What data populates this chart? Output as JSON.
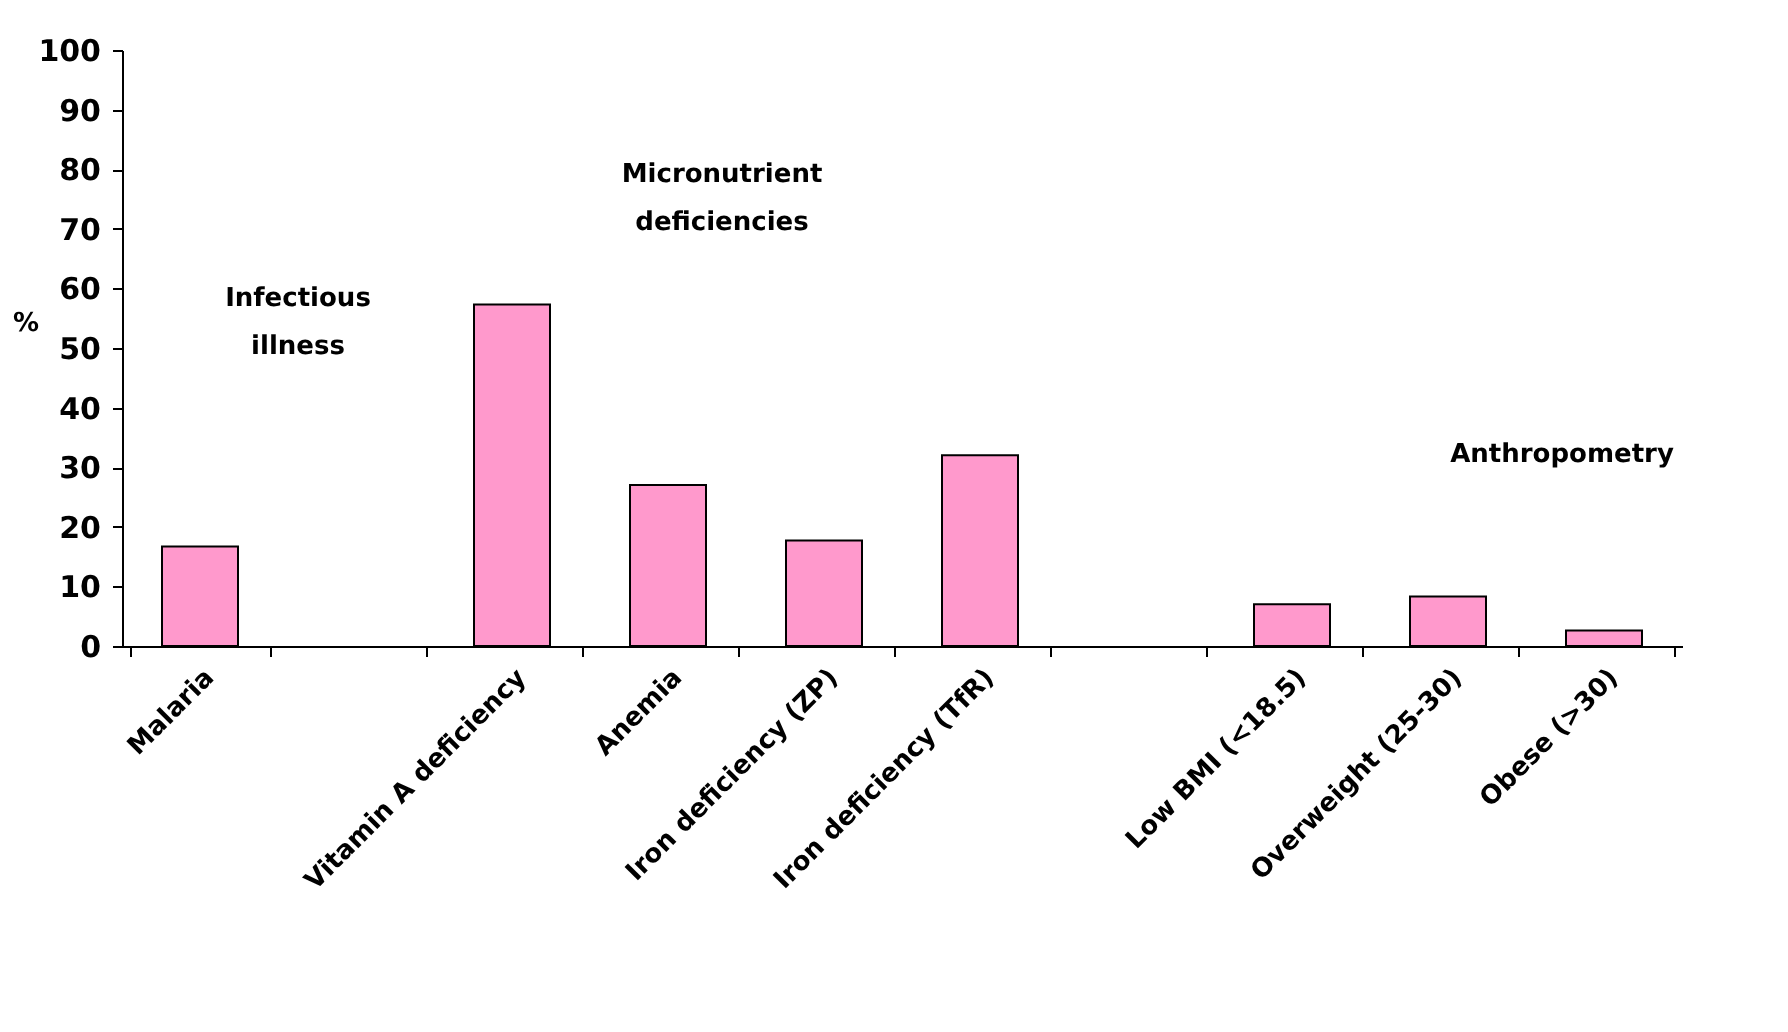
{
  "chart_data": {
    "type": "bar",
    "categories": [
      "Malaria",
      null,
      "Vitamin A deficiency",
      "Anemia",
      "Iron deficiency (ZP)",
      "Iron deficiency (TfR)",
      null,
      "Low BMI (<18.5)",
      "Overweight (25-30)",
      "Obese (>30)"
    ],
    "values": [
      16.7,
      null,
      57.3,
      27,
      17.7,
      32,
      null,
      7,
      8.3,
      2.6
    ],
    "color": "#ff99cc",
    "ylabel": "%",
    "ylim": [
      0,
      100
    ],
    "yticks": [
      0,
      10,
      20,
      30,
      40,
      50,
      60,
      70,
      80,
      90,
      100
    ],
    "grid": false,
    "annotations": [
      "Infectious\nillness",
      "Micronutrient\ndeficiencies",
      "Anthropometry"
    ]
  }
}
